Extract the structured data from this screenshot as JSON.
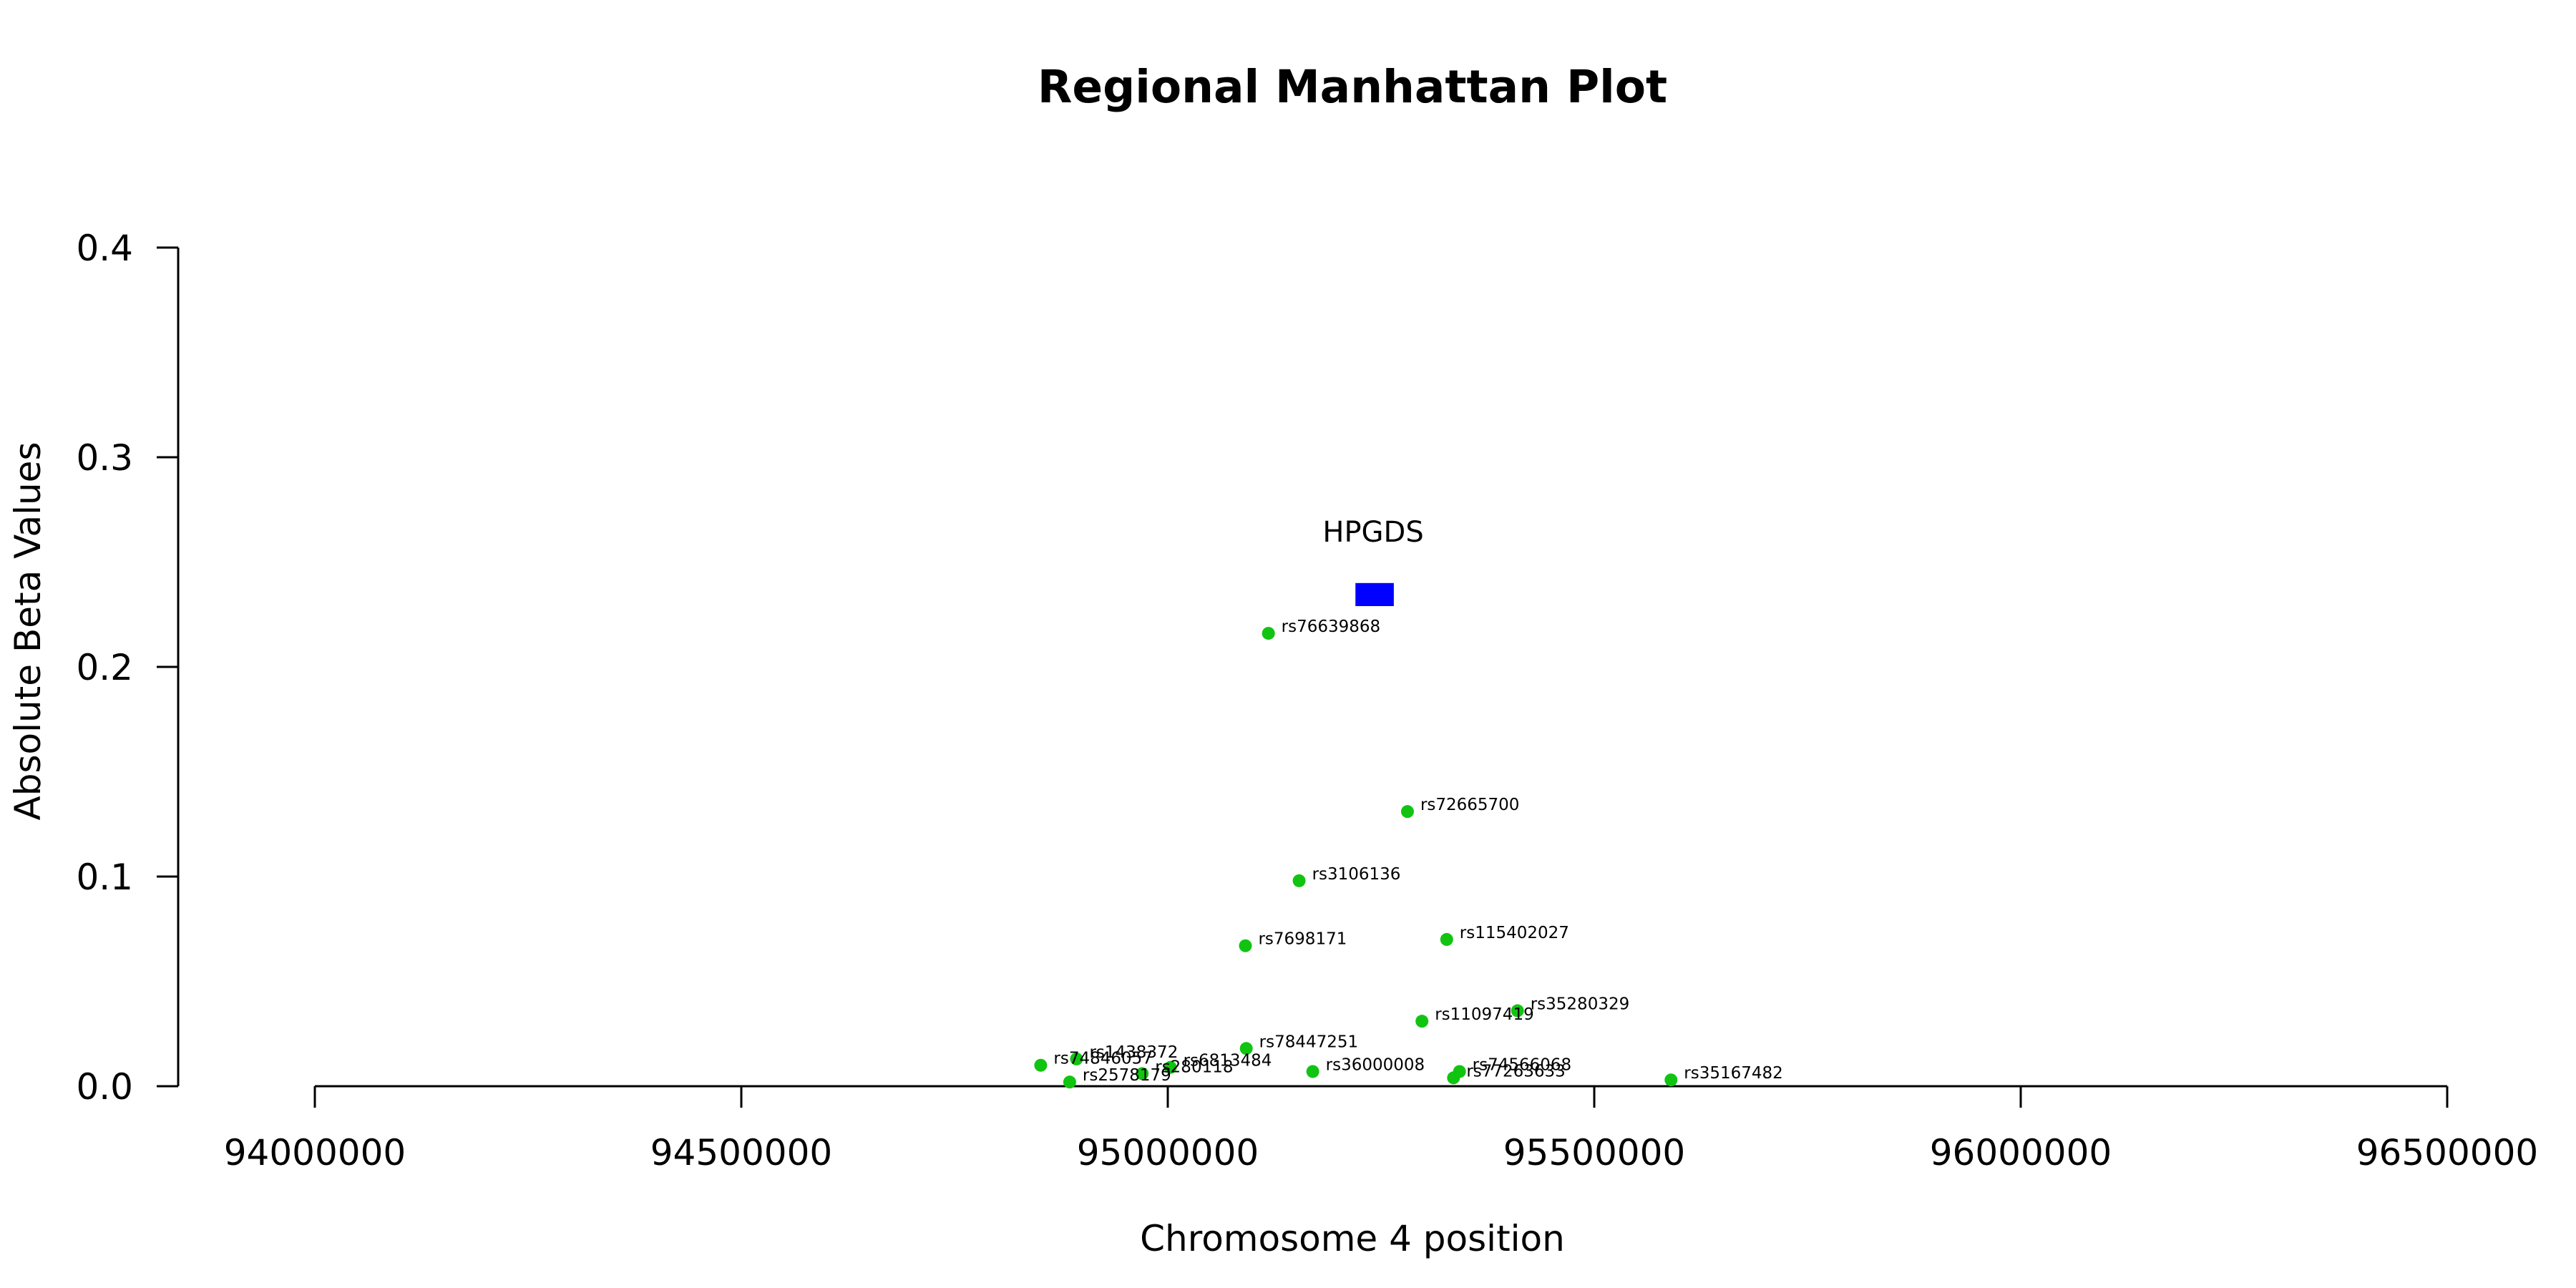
{
  "chart_data": {
    "type": "scatter",
    "title": "Regional Manhattan Plot",
    "xlabel": "Chromosome 4 position",
    "ylabel": "Absolute Beta Values",
    "xlim": [
      94000000,
      96500000
    ],
    "ylim": [
      0,
      0.4
    ],
    "x_ticks": [
      94000000,
      94500000,
      95000000,
      95500000,
      96000000,
      96500000
    ],
    "x_tick_labels": [
      "94000000",
      "94500000",
      "95000000",
      "95500000",
      "96000000",
      "96500000"
    ],
    "y_ticks": [
      0.0,
      0.1,
      0.2,
      0.3,
      0.4
    ],
    "y_tick_labels": [
      "0.0",
      "0.1",
      "0.2",
      "0.3",
      "0.4"
    ],
    "grid": false,
    "point_color": "#11c411",
    "gene": {
      "name": "HPGDS",
      "start": 95220000,
      "end": 95265000,
      "y_low": 0.229,
      "y_high": 0.24,
      "color": "#0000ff"
    },
    "points": [
      {
        "label": "rs76639868",
        "x": 95118000,
        "y": 0.216
      },
      {
        "label": "rs72665700",
        "x": 95281000,
        "y": 0.131
      },
      {
        "label": "rs3106136",
        "x": 95154000,
        "y": 0.098
      },
      {
        "label": "rs7698171",
        "x": 95091000,
        "y": 0.067
      },
      {
        "label": "rs115402027",
        "x": 95327000,
        "y": 0.07
      },
      {
        "label": "rs35280329",
        "x": 95410000,
        "y": 0.036
      },
      {
        "label": "rs11097419",
        "x": 95298000,
        "y": 0.031
      },
      {
        "label": "rs78447251",
        "x": 95092000,
        "y": 0.018
      },
      {
        "label": "rs1438372",
        "x": 94893000,
        "y": 0.013
      },
      {
        "label": "rs74846057",
        "x": 94851000,
        "y": 0.01
      },
      {
        "label": "rs6813484",
        "x": 95003000,
        "y": 0.009
      },
      {
        "label": "rs280118",
        "x": 94970000,
        "y": 0.006
      },
      {
        "label": "rs2578179",
        "x": 94885000,
        "y": 0.002
      },
      {
        "label": "rs36000008",
        "x": 95170000,
        "y": 0.007
      },
      {
        "label": "rs74566068",
        "x": 95342000,
        "y": 0.007
      },
      {
        "label": "rs77263633",
        "x": 95335000,
        "y": 0.004
      },
      {
        "label": "rs35167482",
        "x": 95590000,
        "y": 0.003
      }
    ]
  }
}
